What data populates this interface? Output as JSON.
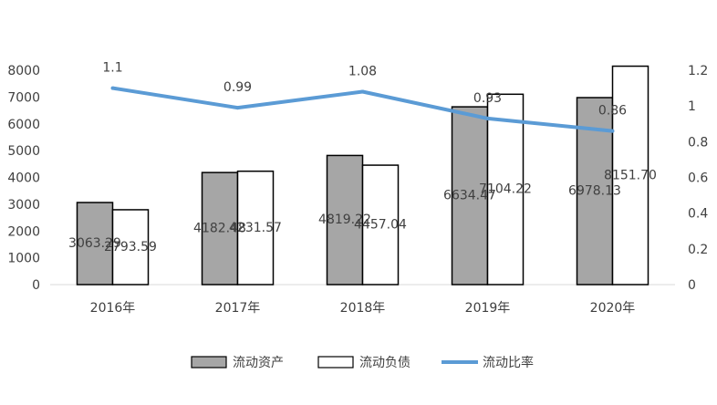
{
  "chart_data": {
    "type": "bar+line",
    "categories": [
      "2016年",
      "2017年",
      "2018年",
      "2019年",
      "2020年"
    ],
    "series": [
      {
        "name": "流动资产",
        "kind": "bar",
        "axis": "left",
        "values": [
          3063.29,
          4182.48,
          4819.22,
          6634.47,
          6978.13
        ],
        "labels": [
          "3063.29",
          "4182.48",
          "4819.22",
          "6634.47",
          "6978.13"
        ],
        "fill": "#a6a6a6",
        "stroke": "#000000"
      },
      {
        "name": "流动负债",
        "kind": "bar",
        "axis": "left",
        "values": [
          2793.59,
          4231.57,
          4457.04,
          7104.22,
          8151.7
        ],
        "labels": [
          "2793.59",
          "4231.57",
          "4457.04",
          "7104.22",
          "8151.70"
        ],
        "fill": "#ffffff",
        "stroke": "#000000"
      },
      {
        "name": "流动比率",
        "kind": "line",
        "axis": "right",
        "values": [
          1.1,
          0.99,
          1.08,
          0.93,
          0.86
        ],
        "labels": [
          "1.1",
          "0.99",
          "1.08",
          "0.93",
          "0.86"
        ],
        "color": "#5b9bd5"
      }
    ],
    "left_axis": {
      "min": 0,
      "max": 8000,
      "step": 1000,
      "ticks": [
        "0",
        "1000",
        "2000",
        "3000",
        "4000",
        "5000",
        "6000",
        "7000",
        "8000"
      ]
    },
    "right_axis": {
      "min": 0,
      "max": 1.2,
      "step": 0.2,
      "ticks": [
        "0",
        "0.2",
        "0.4",
        "0.6",
        "0.8",
        "1",
        "1.2"
      ]
    },
    "grid": false,
    "legend_position": "bottom",
    "legend": [
      "流动资产",
      "流动负债",
      "流动比率"
    ]
  }
}
